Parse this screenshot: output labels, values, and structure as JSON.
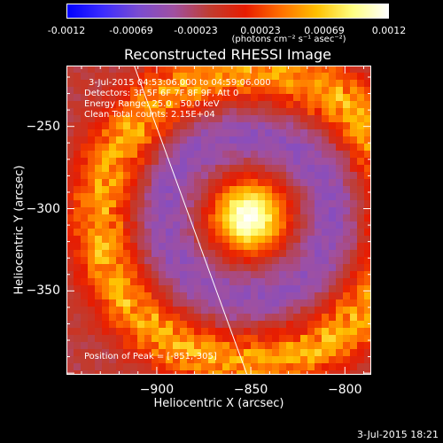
{
  "colorbar": {
    "ticks": [
      "-0.0012",
      "-0.00069",
      "-0.00023",
      "0.00023",
      "0.00069",
      "0.0012"
    ],
    "unit": "(photons cm⁻² s⁻¹ asec⁻²)",
    "colors": [
      "#0000ff",
      "#3c2cff",
      "#7a4cd0",
      "#a050a0",
      "#c03c30",
      "#e81c00",
      "#ff7000",
      "#ffc000",
      "#ffff80",
      "#ffffff"
    ]
  },
  "info": {
    "time_range": "3-Jul-2015 04:53:06.000 to 04:59:06.000",
    "detectors": "Detectors: 3F 5F 6F 7F 8F 9F, Att 0",
    "energy": "Energy Range: 25.0 - 50.0 keV",
    "clean": "Clean    Total counts: 2.15E+04",
    "peak": "Position of Peak = [-851,-305]"
  },
  "footer": {
    "date": "3-Jul-2015 18:21"
  },
  "chart_data": {
    "type": "heatmap",
    "title": "Reconstructed RHESSI Image",
    "xlabel": "Heliocentric X (arcsec)",
    "ylabel": "Heliocentric Y (arcsec)",
    "xlim": [
      -948,
      -786
    ],
    "ylim": [
      -401,
      -213
    ],
    "xticks": [
      "-900",
      "-850",
      "-800"
    ],
    "yticks": [
      "-250",
      "-300",
      "-350"
    ],
    "xtick_values": [
      -900,
      -850,
      -800
    ],
    "ytick_values": [
      -250,
      -300,
      -350
    ],
    "value_range": [
      -0.0012,
      0.0012
    ],
    "peak": {
      "x": -851,
      "y": -305
    },
    "features": [
      {
        "name": "central source",
        "x": -851,
        "y": -305,
        "relative_intensity": 1.0
      },
      {
        "name": "ring sidelobe",
        "x": -851,
        "y": -305,
        "radius_arcsec": 75,
        "relative_intensity": 0.55
      },
      {
        "name": "negative annulus",
        "x": -851,
        "y": -305,
        "radius_arcsec": 42,
        "relative_intensity": -0.25
      }
    ],
    "limb_line": {
      "x_top": -912,
      "y_top": -213,
      "x_bottom": -852,
      "y_bottom": -401
    }
  }
}
